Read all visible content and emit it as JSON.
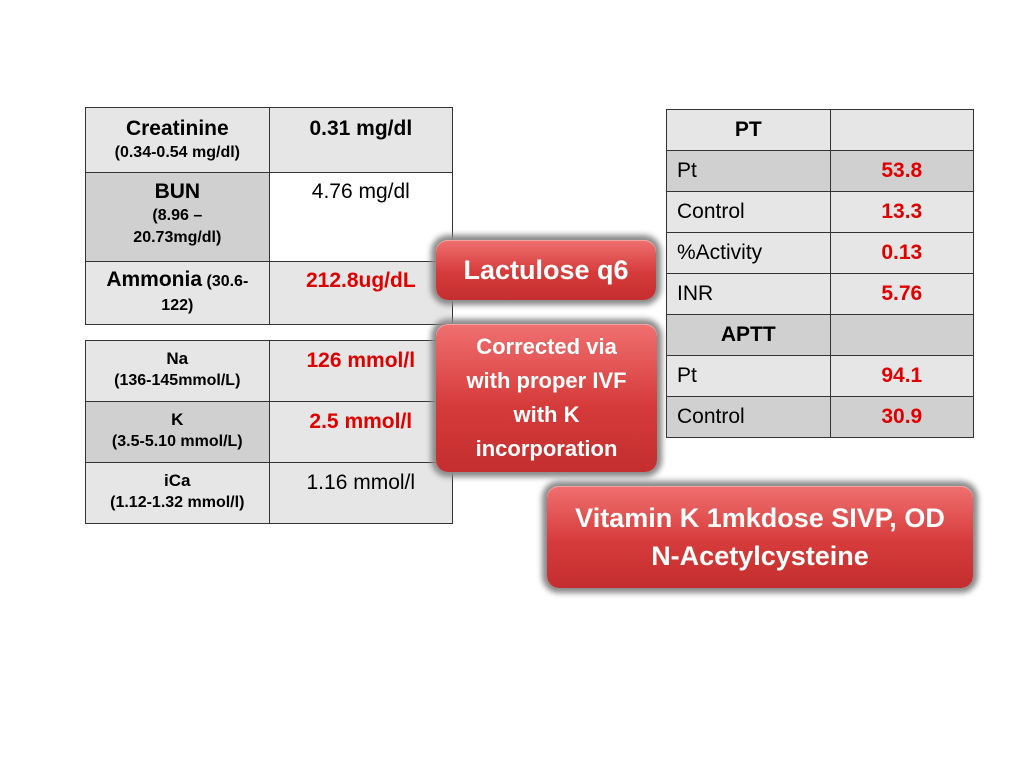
{
  "left_table_1": {
    "rows": [
      {
        "label": "Creatinine",
        "range": "(0.34-0.54 mg/dl)",
        "value": "0.31 mg/dl"
      },
      {
        "label": "BUN",
        "range": "(8.96 – 20.73mg/dl)",
        "value": "4.76 mg/dl"
      },
      {
        "label": "Ammonia",
        "range": "(30.6-122)",
        "value": "212.8ug/dL"
      }
    ]
  },
  "left_table_2": {
    "rows": [
      {
        "label": "Na",
        "range": "(136-145mmol/L)",
        "value": "126 mmol/l"
      },
      {
        "label": "K",
        "range": "(3.5-5.10 mmol/L)",
        "value": "2.5 mmol/l"
      },
      {
        "label": "iCa",
        "range": "(1.12-1.32 mmol/l)",
        "value": "1.16 mmol/l"
      }
    ]
  },
  "right_table": {
    "pt_header": "PT",
    "pt_rows": [
      {
        "label": "Pt",
        "value": "53.8"
      },
      {
        "label": "Control",
        "value": "13.3"
      },
      {
        "label": "%Activity",
        "value": "0.13"
      },
      {
        "label": "INR",
        "value": "5.76"
      }
    ],
    "aptt_header": "APTT",
    "aptt_rows": [
      {
        "label": "Pt",
        "value": "94.1"
      },
      {
        "label": "Control",
        "value": "30.9"
      }
    ]
  },
  "callouts": {
    "lactulose": "Lactulose q6",
    "corrected": [
      "Corrected via",
      "with proper IVF",
      "with K",
      "incorporation"
    ],
    "vitamin_k": [
      "Vitamin K 1mkdose SIVP, OD",
      "N-Acetylcysteine"
    ]
  },
  "colors": {
    "abnormal_value": "#e00000",
    "callout_fill": "#d63b3b",
    "cell_light": "#e6e6e6",
    "cell_dark": "#d0d0d0"
  }
}
